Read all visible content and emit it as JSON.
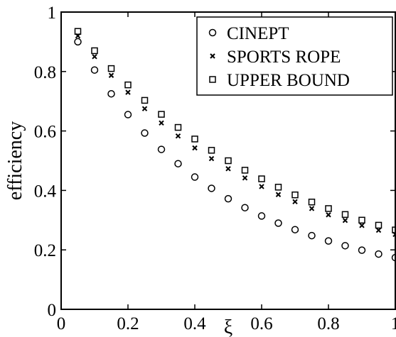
{
  "chart_data": {
    "type": "scatter",
    "title": "",
    "xlabel": "ξ",
    "ylabel": "efficiency",
    "xlim": [
      0,
      1
    ],
    "ylim": [
      0,
      1
    ],
    "xticks": [
      0,
      0.2,
      0.4,
      0.6,
      0.8,
      1
    ],
    "yticks": [
      0,
      0.2,
      0.4,
      0.6,
      0.8,
      1
    ],
    "xtick_labels": [
      "0",
      "0.2",
      "0.4",
      "0.6",
      "0.8",
      "1"
    ],
    "ytick_labels": [
      "0",
      "0.2",
      "0.4",
      "0.6",
      "0.8",
      "1"
    ],
    "grid": false,
    "legend_position": "top-right",
    "x": [
      0.05,
      0.1,
      0.15,
      0.2,
      0.25,
      0.3,
      0.35,
      0.4,
      0.45,
      0.5,
      0.55,
      0.6,
      0.65,
      0.7,
      0.75,
      0.8,
      0.85,
      0.9,
      0.95,
      1.0
    ],
    "series": [
      {
        "name": "CINEPT",
        "marker": "circle",
        "values": [
          0.9,
          0.805,
          0.725,
          0.655,
          0.593,
          0.538,
          0.49,
          0.445,
          0.407,
          0.372,
          0.342,
          0.314,
          0.29,
          0.268,
          0.248,
          0.23,
          0.214,
          0.199,
          0.186,
          0.174
        ]
      },
      {
        "name": "SPORTS ROPE",
        "marker": "x",
        "values": [
          0.92,
          0.85,
          0.787,
          0.73,
          0.675,
          0.627,
          0.583,
          0.543,
          0.507,
          0.473,
          0.442,
          0.413,
          0.386,
          0.362,
          0.339,
          0.318,
          0.299,
          0.282,
          0.266,
          0.252
        ]
      },
      {
        "name": "UPPER BOUND",
        "marker": "square",
        "values": [
          0.935,
          0.87,
          0.81,
          0.755,
          0.703,
          0.656,
          0.612,
          0.573,
          0.535,
          0.5,
          0.468,
          0.439,
          0.411,
          0.385,
          0.361,
          0.339,
          0.319,
          0.3,
          0.283,
          0.267
        ]
      }
    ]
  }
}
